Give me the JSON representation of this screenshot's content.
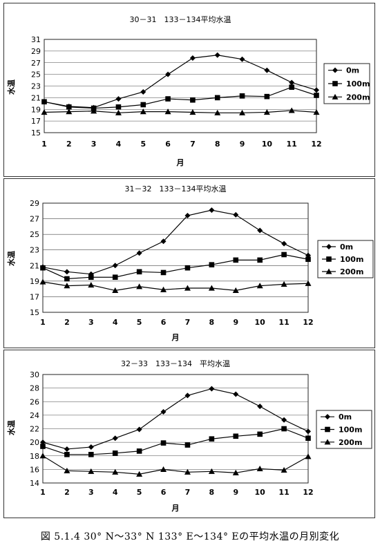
{
  "charts": [
    {
      "type": "line",
      "title": "30－31　133－134平均水温",
      "xlabel": "月",
      "ylabel": "水温",
      "categories": [
        1,
        2,
        3,
        4,
        5,
        6,
        7,
        8,
        9,
        10,
        11,
        12
      ],
      "ylim": [
        15,
        31
      ],
      "yticks": [
        15,
        17,
        19,
        21,
        23,
        25,
        27,
        29,
        31
      ],
      "series": [
        {
          "name": "0m",
          "marker": "diamond",
          "values": [
            20.3,
            19.5,
            19.3,
            20.8,
            22.0,
            25.0,
            27.8,
            28.3,
            27.6,
            25.7,
            23.6,
            22.3
          ]
        },
        {
          "name": "100m",
          "marker": "square",
          "values": [
            20.3,
            19.4,
            19.2,
            19.4,
            19.8,
            20.8,
            20.6,
            21.0,
            21.3,
            21.2,
            22.8,
            21.4
          ]
        },
        {
          "name": "200m",
          "marker": "triangle",
          "values": [
            18.5,
            18.6,
            18.7,
            18.4,
            18.6,
            18.6,
            18.5,
            18.4,
            18.4,
            18.5,
            18.8,
            18.5
          ]
        }
      ],
      "legend": "right",
      "grid": "horizontal"
    },
    {
      "type": "line",
      "title": "31－32　133－134平均水温",
      "xlabel": "月",
      "ylabel": "水温",
      "categories": [
        1,
        2,
        3,
        4,
        5,
        6,
        7,
        8,
        9,
        10,
        11,
        12
      ],
      "ylim": [
        15,
        29
      ],
      "yticks": [
        15,
        17,
        19,
        21,
        23,
        25,
        27,
        29
      ],
      "series": [
        {
          "name": "0m",
          "marker": "diamond",
          "values": [
            20.8,
            20.2,
            19.9,
            21.0,
            22.6,
            24.1,
            27.4,
            28.1,
            27.5,
            25.5,
            23.8,
            22.3
          ]
        },
        {
          "name": "100m",
          "marker": "square",
          "values": [
            20.7,
            19.3,
            19.5,
            19.5,
            20.2,
            20.1,
            20.7,
            21.1,
            21.7,
            21.7,
            22.4,
            21.8
          ]
        },
        {
          "name": "200m",
          "marker": "triangle",
          "values": [
            18.9,
            18.4,
            18.5,
            17.8,
            18.3,
            17.9,
            18.1,
            18.1,
            17.8,
            18.4,
            18.6,
            18.7
          ]
        }
      ],
      "legend": "right",
      "grid": "horizontal"
    },
    {
      "type": "line",
      "title": "32－33　133－134　平均水温",
      "xlabel": "月",
      "ylabel": "水温",
      "categories": [
        1,
        2,
        3,
        4,
        5,
        6,
        7,
        8,
        9,
        10,
        11,
        12
      ],
      "ylim": [
        14,
        30
      ],
      "yticks": [
        14,
        16,
        18,
        20,
        22,
        24,
        26,
        28,
        30
      ],
      "series": [
        {
          "name": "0m",
          "marker": "diamond",
          "values": [
            20.0,
            19.0,
            19.3,
            20.6,
            21.9,
            24.5,
            26.9,
            27.9,
            27.1,
            25.3,
            23.3,
            21.6
          ]
        },
        {
          "name": "100m",
          "marker": "square",
          "values": [
            19.4,
            18.2,
            18.2,
            18.4,
            18.7,
            19.9,
            19.6,
            20.5,
            20.9,
            21.2,
            22.0,
            20.6
          ]
        },
        {
          "name": "200m",
          "marker": "triangle",
          "values": [
            18.0,
            15.8,
            15.7,
            15.6,
            15.3,
            16.0,
            15.6,
            15.7,
            15.5,
            16.1,
            15.9,
            17.9
          ]
        }
      ],
      "legend": "right",
      "grid": "horizontal"
    }
  ],
  "caption": "図 5.1.4 30° N～33° N 133° E～134° Eの平均水温の月別変化"
}
